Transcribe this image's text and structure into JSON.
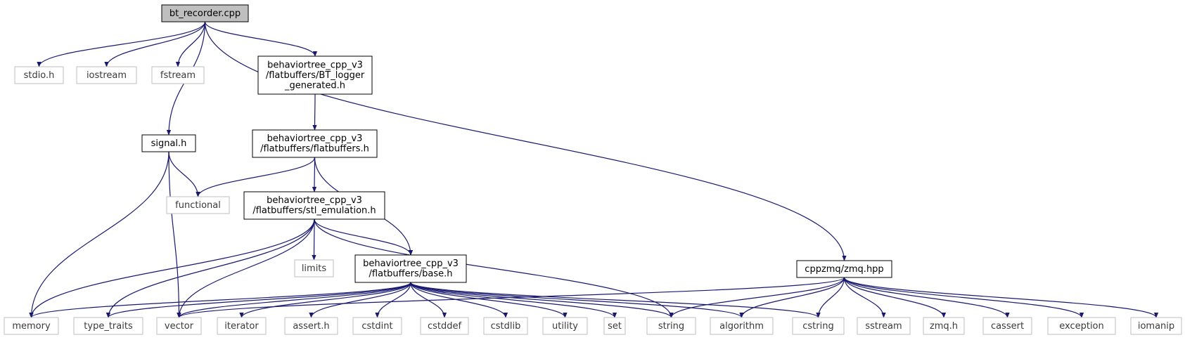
{
  "diagram": {
    "colors": {
      "edge": "#191970",
      "root_fill": "#bfbfbf",
      "file_stroke": "#000000",
      "std_stroke": "#bfbfbf"
    },
    "nodes": [
      {
        "id": "bt_recorder",
        "kind": "root",
        "lines": [
          "bt_recorder.cpp"
        ]
      },
      {
        "id": "stdio",
        "kind": "std",
        "lines": [
          "stdio.h"
        ]
      },
      {
        "id": "iostream",
        "kind": "std",
        "lines": [
          "iostream"
        ]
      },
      {
        "id": "fstream",
        "kind": "std",
        "lines": [
          "fstream"
        ]
      },
      {
        "id": "bt_logger",
        "kind": "file",
        "lines": [
          "behaviortree_cpp_v3",
          "/flatbuffers/BT_logger",
          "_generated.h"
        ]
      },
      {
        "id": "signal",
        "kind": "file",
        "lines": [
          "signal.h"
        ]
      },
      {
        "id": "flatbuffers",
        "kind": "file",
        "lines": [
          "behaviortree_cpp_v3",
          "/flatbuffers/flatbuffers.h"
        ]
      },
      {
        "id": "functional",
        "kind": "std",
        "lines": [
          "functional"
        ]
      },
      {
        "id": "stl_emulation",
        "kind": "file",
        "lines": [
          "behaviortree_cpp_v3",
          "/flatbuffers/stl_emulation.h"
        ]
      },
      {
        "id": "limits",
        "kind": "std",
        "lines": [
          "limits"
        ]
      },
      {
        "id": "base",
        "kind": "file",
        "lines": [
          "behaviortree_cpp_v3",
          "/flatbuffers/base.h"
        ]
      },
      {
        "id": "zmq_hpp",
        "kind": "file",
        "lines": [
          "cppzmq/zmq.hpp"
        ]
      },
      {
        "id": "memory",
        "kind": "std",
        "lines": [
          "memory"
        ]
      },
      {
        "id": "type_traits",
        "kind": "std",
        "lines": [
          "type_traits"
        ]
      },
      {
        "id": "vector",
        "kind": "std",
        "lines": [
          "vector"
        ]
      },
      {
        "id": "iterator",
        "kind": "std",
        "lines": [
          "iterator"
        ]
      },
      {
        "id": "assert",
        "kind": "std",
        "lines": [
          "assert.h"
        ]
      },
      {
        "id": "cstdint",
        "kind": "std",
        "lines": [
          "cstdint"
        ]
      },
      {
        "id": "cstddef",
        "kind": "std",
        "lines": [
          "cstddef"
        ]
      },
      {
        "id": "cstdlib",
        "kind": "std",
        "lines": [
          "cstdlib"
        ]
      },
      {
        "id": "utility",
        "kind": "std",
        "lines": [
          "utility"
        ]
      },
      {
        "id": "set",
        "kind": "std",
        "lines": [
          "set"
        ]
      },
      {
        "id": "string",
        "kind": "std",
        "lines": [
          "string"
        ]
      },
      {
        "id": "algorithm",
        "kind": "std",
        "lines": [
          "algorithm"
        ]
      },
      {
        "id": "cstring",
        "kind": "std",
        "lines": [
          "cstring"
        ]
      },
      {
        "id": "sstream",
        "kind": "std",
        "lines": [
          "sstream"
        ]
      },
      {
        "id": "zmq_h",
        "kind": "std",
        "lines": [
          "zmq.h"
        ]
      },
      {
        "id": "cassert",
        "kind": "std",
        "lines": [
          "cassert"
        ]
      },
      {
        "id": "exception",
        "kind": "std",
        "lines": [
          "exception"
        ]
      },
      {
        "id": "iomanip",
        "kind": "std",
        "lines": [
          "iomanip"
        ]
      }
    ],
    "edges": [
      [
        "bt_recorder",
        "stdio"
      ],
      [
        "bt_recorder",
        "iostream"
      ],
      [
        "bt_recorder",
        "fstream"
      ],
      [
        "bt_recorder",
        "signal"
      ],
      [
        "bt_recorder",
        "bt_logger"
      ],
      [
        "bt_recorder",
        "zmq_hpp"
      ],
      [
        "bt_logger",
        "flatbuffers"
      ],
      [
        "signal",
        "functional"
      ],
      [
        "signal",
        "memory"
      ],
      [
        "signal",
        "vector"
      ],
      [
        "flatbuffers",
        "functional"
      ],
      [
        "flatbuffers",
        "stl_emulation"
      ],
      [
        "flatbuffers",
        "base"
      ],
      [
        "stl_emulation",
        "base"
      ],
      [
        "stl_emulation",
        "limits"
      ],
      [
        "stl_emulation",
        "memory"
      ],
      [
        "stl_emulation",
        "type_traits"
      ],
      [
        "stl_emulation",
        "vector"
      ],
      [
        "stl_emulation",
        "string"
      ],
      [
        "base",
        "memory"
      ],
      [
        "base",
        "type_traits"
      ],
      [
        "base",
        "vector"
      ],
      [
        "base",
        "iterator"
      ],
      [
        "base",
        "assert"
      ],
      [
        "base",
        "cstdint"
      ],
      [
        "base",
        "cstddef"
      ],
      [
        "base",
        "cstdlib"
      ],
      [
        "base",
        "utility"
      ],
      [
        "base",
        "set"
      ],
      [
        "base",
        "string"
      ],
      [
        "base",
        "algorithm"
      ],
      [
        "base",
        "cstring"
      ],
      [
        "zmq_hpp",
        "vector"
      ],
      [
        "zmq_hpp",
        "string"
      ],
      [
        "zmq_hpp",
        "algorithm"
      ],
      [
        "zmq_hpp",
        "cstring"
      ],
      [
        "zmq_hpp",
        "sstream"
      ],
      [
        "zmq_hpp",
        "zmq_h"
      ],
      [
        "zmq_hpp",
        "cassert"
      ],
      [
        "zmq_hpp",
        "exception"
      ],
      [
        "zmq_hpp",
        "iomanip"
      ]
    ]
  }
}
